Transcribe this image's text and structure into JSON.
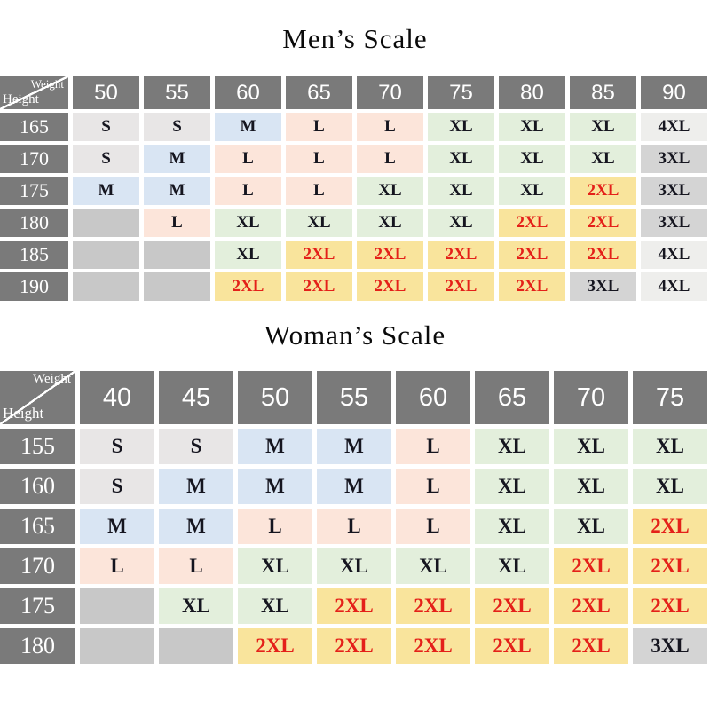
{
  "page_background": "#ffffff",
  "colors": {
    "header_bg": "#7a7a7a",
    "header_text": "#ffffff",
    "cell_text": "#15151f",
    "red_text": "#e42019",
    "diagonal_line": "#ffffff",
    "s": "#e8e6e6",
    "m": "#d9e5f3",
    "l": "#fce5da",
    "xl": "#e3efdc",
    "2xl": "#f9e49c",
    "3xl": "#d4d4d4",
    "4xl": "#eeeeec",
    "empty": "#c8c8c8"
  },
  "chart_data": [
    {
      "type": "table",
      "title": "Men’s Scale",
      "corner_labels": {
        "top_right": "Weight",
        "bottom_left": "Height"
      },
      "weight_columns": [
        "50",
        "55",
        "60",
        "65",
        "70",
        "75",
        "80",
        "85",
        "90"
      ],
      "height_rows": [
        "165",
        "170",
        "175",
        "180",
        "185",
        "190"
      ],
      "cells": [
        [
          "S",
          "S",
          "M",
          "L",
          "L",
          "XL",
          "XL",
          "XL",
          "4XL"
        ],
        [
          "S",
          "M",
          "L",
          "L",
          "L",
          "XL",
          "XL",
          "XL",
          "3XL"
        ],
        [
          "M",
          "M",
          "L",
          "L",
          "XL",
          "XL",
          "XL",
          "2XL",
          "3XL"
        ],
        [
          "",
          "L",
          "XL",
          "XL",
          "XL",
          "XL",
          "2XL",
          "2XL",
          "3XL"
        ],
        [
          "",
          "",
          "XL",
          "2XL",
          "2XL",
          "2XL",
          "2XL",
          "2XL",
          "4XL"
        ],
        [
          "",
          "",
          "2XL",
          "2XL",
          "2XL",
          "2XL",
          "2XL",
          "3XL",
          "4XL"
        ]
      ]
    },
    {
      "type": "table",
      "title": "Woman’s Scale",
      "corner_labels": {
        "top_right": "Weight",
        "bottom_left": "Height"
      },
      "weight_columns": [
        "40",
        "45",
        "50",
        "55",
        "60",
        "65",
        "70",
        "75"
      ],
      "height_rows": [
        "155",
        "160",
        "165",
        "170",
        "175",
        "180"
      ],
      "cells": [
        [
          "S",
          "S",
          "M",
          "M",
          "L",
          "XL",
          "XL",
          "XL"
        ],
        [
          "S",
          "M",
          "M",
          "M",
          "L",
          "XL",
          "XL",
          "XL"
        ],
        [
          "M",
          "M",
          "L",
          "L",
          "L",
          "XL",
          "XL",
          "2XL"
        ],
        [
          "L",
          "L",
          "XL",
          "XL",
          "XL",
          "XL",
          "2XL",
          "2XL"
        ],
        [
          "",
          "XL",
          "XL",
          "2XL",
          "2XL",
          "2XL",
          "2XL",
          "2XL"
        ],
        [
          "",
          "",
          "2XL",
          "2XL",
          "2XL",
          "2XL",
          "2XL",
          "3XL"
        ]
      ]
    }
  ]
}
